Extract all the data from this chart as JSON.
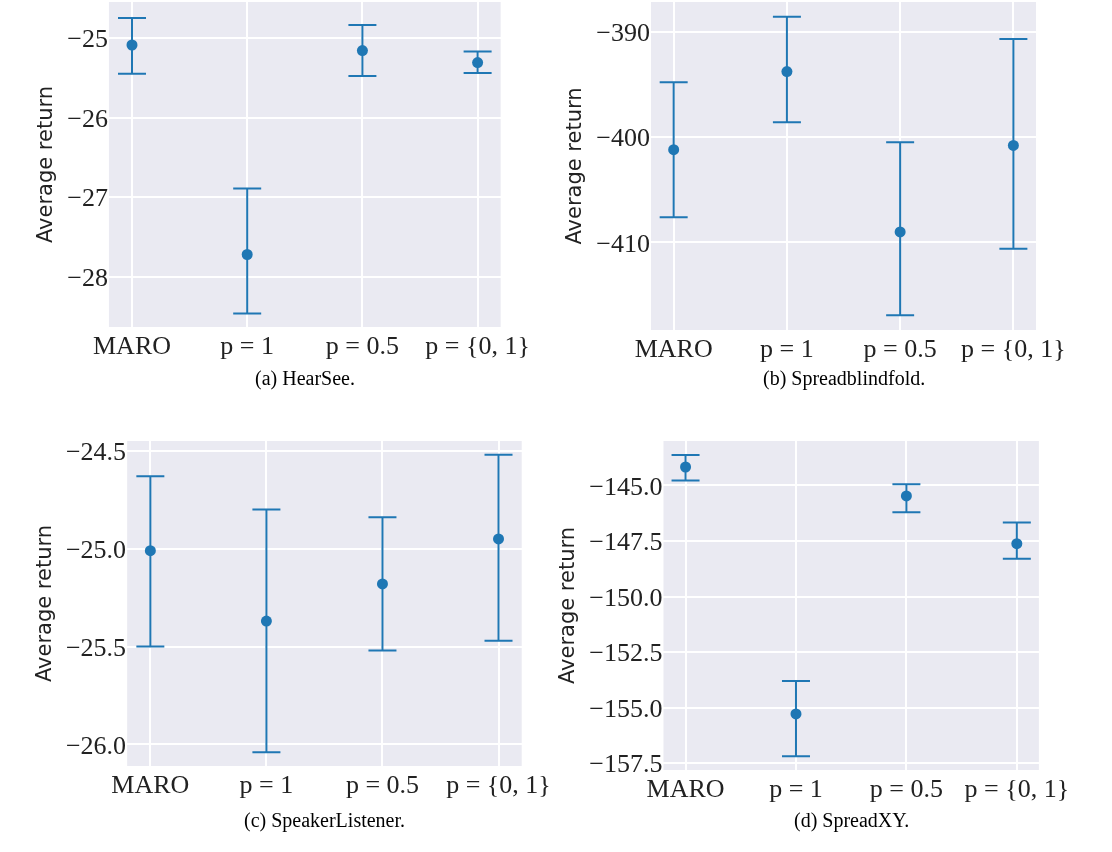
{
  "chart_data": [
    {
      "type": "scatter",
      "title": "(a) HearSee.",
      "ylabel": "Average return",
      "categories": [
        "MARO",
        "p = 1",
        "p = 0.5",
        "p = {0, 1}"
      ],
      "values": [
        -25.09,
        -27.72,
        -25.16,
        -25.31
      ],
      "errors": [
        [
          -25.45,
          -24.75
        ],
        [
          -28.46,
          -26.89
        ],
        [
          -25.48,
          -24.84
        ],
        [
          -25.44,
          -25.17
        ]
      ],
      "color": "#1f77b4",
      "marker": "circle",
      "grid": true,
      "ylim": [
        -28.63,
        -24.55
      ],
      "yticks": [
        {
          "value": -28,
          "label": "−28"
        },
        {
          "value": -27,
          "label": "−27"
        },
        {
          "value": -26,
          "label": "−26"
        },
        {
          "value": -25,
          "label": "−25"
        }
      ]
    },
    {
      "type": "scatter",
      "title": "(b) Spreadblindfold.",
      "ylabel": "Average return",
      "categories": [
        "MARO",
        "p = 1",
        "p = 0.5",
        "p = {0, 1}"
      ],
      "values": [
        -401.2,
        -393.8,
        -409.0,
        -400.8
      ],
      "errors": [
        [
          -407.6,
          -394.8
        ],
        [
          -398.6,
          -388.6
        ],
        [
          -416.9,
          -400.5
        ],
        [
          -410.6,
          -390.7
        ]
      ],
      "color": "#1f77b4",
      "marker": "circle",
      "grid": true,
      "ylim": [
        -418.3,
        -387.2
      ],
      "yticks": [
        {
          "value": -410,
          "label": "−410"
        },
        {
          "value": -400,
          "label": "−400"
        },
        {
          "value": -390,
          "label": "−390"
        }
      ]
    },
    {
      "type": "scatter",
      "title": "(c) SpeakerListener.",
      "ylabel": "Average return",
      "categories": [
        "MARO",
        "p = 1",
        "p = 0.5",
        "p = {0, 1}"
      ],
      "values": [
        -25.01,
        -25.37,
        -25.18,
        -24.95
      ],
      "errors": [
        [
          -25.5,
          -24.63
        ],
        [
          -26.04,
          -24.8
        ],
        [
          -25.52,
          -24.84
        ],
        [
          -25.47,
          -24.52
        ]
      ],
      "color": "#1f77b4",
      "marker": "circle",
      "grid": true,
      "ylim": [
        -26.11,
        -24.45
      ],
      "yticks": [
        {
          "value": -26.0,
          "label": "−26.0"
        },
        {
          "value": -25.5,
          "label": "−25.5"
        },
        {
          "value": -25.0,
          "label": "−25.0"
        },
        {
          "value": -24.5,
          "label": "−24.5"
        }
      ]
    },
    {
      "type": "scatter",
      "title": "(d) SpreadXY.",
      "ylabel": "Average return",
      "categories": [
        "MARO",
        "p = 1",
        "p = 0.5",
        "p = {0, 1}"
      ],
      "values": [
        -144.17,
        -155.28,
        -145.47,
        -147.62
      ],
      "errors": [
        [
          -144.78,
          -143.63
        ],
        [
          -157.18,
          -153.8
        ],
        [
          -146.2,
          -144.95
        ],
        [
          -148.3,
          -146.67
        ]
      ],
      "color": "#1f77b4",
      "marker": "circle",
      "grid": true,
      "ylim": [
        -157.8,
        -143.0
      ],
      "yticks": [
        {
          "value": -157.5,
          "label": "−157.5"
        },
        {
          "value": -155.0,
          "label": "−155.0"
        },
        {
          "value": -152.5,
          "label": "−152.5"
        },
        {
          "value": -150.0,
          "label": "−150.0"
        },
        {
          "value": -147.5,
          "label": "−147.5"
        },
        {
          "value": -145.0,
          "label": "−145.0"
        }
      ]
    }
  ]
}
